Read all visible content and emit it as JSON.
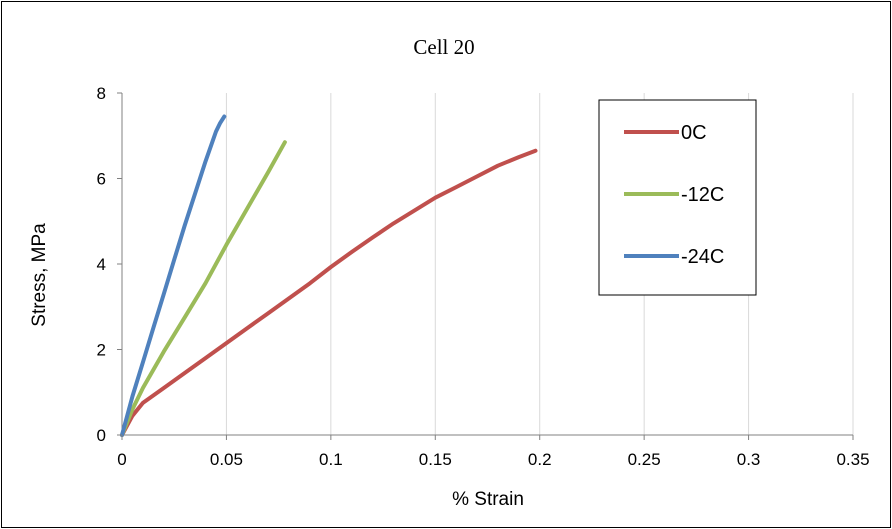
{
  "chart_data": {
    "type": "line",
    "title": "Cell 20",
    "xlabel": "% Strain",
    "ylabel": "Stress, MPa",
    "xlim": [
      0,
      0.35
    ],
    "ylim": [
      0,
      8
    ],
    "xticks": [
      0,
      0.05,
      0.1,
      0.15,
      0.2,
      0.25,
      0.3,
      0.35
    ],
    "xtick_labels": [
      "0",
      "0.05",
      "0.1",
      "0.15",
      "0.2",
      "0.25",
      "0.3",
      "0.35"
    ],
    "yticks": [
      0,
      2,
      4,
      6,
      8
    ],
    "ytick_labels": [
      "0",
      "2",
      "4",
      "6",
      "8"
    ],
    "grid": {
      "vertical": true,
      "horizontal": false
    },
    "legend_position": "top-right",
    "series": [
      {
        "name": "0C",
        "color": "#c0504d",
        "x": [
          0,
          0.005,
          0.01,
          0.02,
          0.03,
          0.04,
          0.05,
          0.06,
          0.07,
          0.08,
          0.09,
          0.1,
          0.11,
          0.12,
          0.13,
          0.14,
          0.15,
          0.16,
          0.17,
          0.18,
          0.19,
          0.198
        ],
        "y": [
          0,
          0.45,
          0.75,
          1.1,
          1.45,
          1.8,
          2.15,
          2.5,
          2.85,
          3.2,
          3.55,
          3.93,
          4.28,
          4.62,
          4.95,
          5.25,
          5.55,
          5.8,
          6.05,
          6.3,
          6.5,
          6.65
        ]
      },
      {
        "name": "-12C",
        "color": "#9bbb59",
        "x": [
          0,
          0.005,
          0.01,
          0.02,
          0.03,
          0.04,
          0.05,
          0.06,
          0.07,
          0.078
        ],
        "y": [
          0,
          0.6,
          1.1,
          1.95,
          2.75,
          3.55,
          4.45,
          5.3,
          6.15,
          6.85
        ]
      },
      {
        "name": "-24C",
        "color": "#4f81bd",
        "x": [
          0,
          0.005,
          0.01,
          0.015,
          0.02,
          0.025,
          0.03,
          0.035,
          0.04,
          0.045,
          0.047,
          0.049
        ],
        "y": [
          0,
          0.9,
          1.7,
          2.5,
          3.3,
          4.1,
          4.9,
          5.65,
          6.4,
          7.1,
          7.3,
          7.45
        ]
      }
    ]
  }
}
